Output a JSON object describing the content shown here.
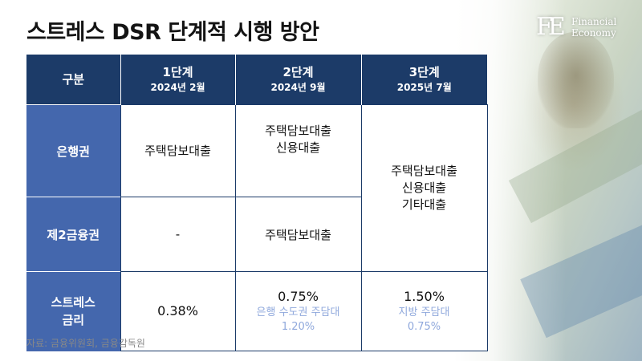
{
  "title": "스트레스 DSR 단계적 시행 방안",
  "logo": {
    "mark": "FE",
    "line1": "Financial",
    "line2": "Economy"
  },
  "table": {
    "header": {
      "category": "구분",
      "stages": [
        {
          "name": "1단계",
          "date": "2024년 2월"
        },
        {
          "name": "2단계",
          "date": "2024년 9월"
        },
        {
          "name": "3단계",
          "date": "2025년 7월"
        }
      ]
    },
    "rows": {
      "bank": {
        "label": "은행권",
        "stage1": [
          "주택담보대출"
        ],
        "stage2": [
          "주택담보대출",
          "신용대출"
        ]
      },
      "secondary": {
        "label": "제2금융권",
        "stage1": "-",
        "stage2": "주택담보대출"
      },
      "stage3_merged": [
        "주택담보대출",
        "신용대출",
        "기타대출"
      ],
      "rate": {
        "label_line1": "스트레스",
        "label_line2": "금리",
        "stage1": "0.38%",
        "stage2": {
          "value": "0.75%",
          "note1": "은행 수도권 주담대",
          "note2": "1.20%"
        },
        "stage3": {
          "value": "1.50%",
          "note1": "지방 주담대",
          "note2": "0.75%"
        }
      }
    }
  },
  "source": "자료: 금융위원회, 금융감독원",
  "colors": {
    "header_bg": "#1c3b68",
    "row_label_bg": "#4467ad",
    "note_text": "#8fa8dc"
  }
}
